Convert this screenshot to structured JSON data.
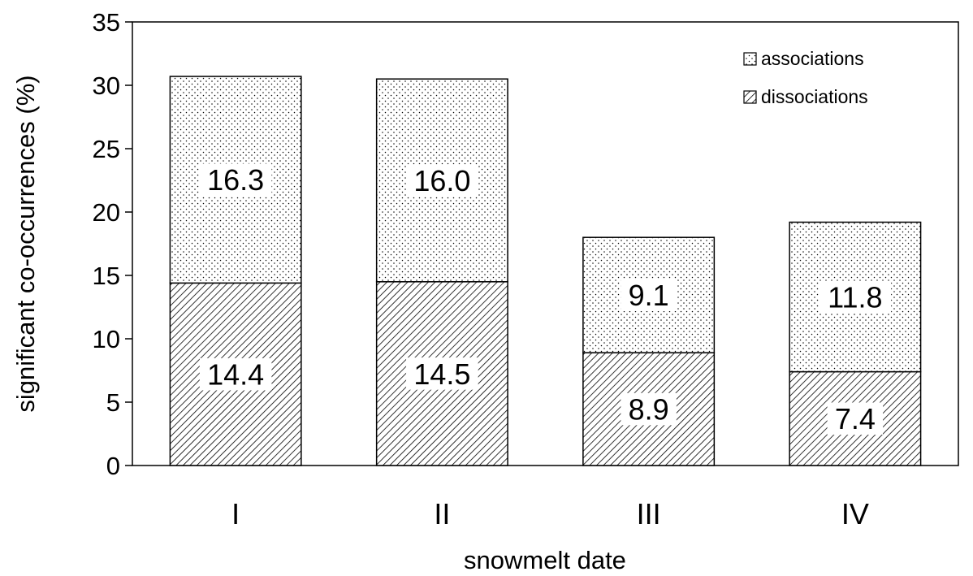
{
  "chart_data": {
    "type": "bar",
    "stacked": true,
    "categories": [
      "I",
      "II",
      "III",
      "IV"
    ],
    "series": [
      {
        "name": "dissociations",
        "values": [
          14.4,
          14.5,
          8.9,
          7.4
        ],
        "pattern": "hatch"
      },
      {
        "name": "associations",
        "values": [
          16.3,
          16.0,
          9.1,
          11.8
        ],
        "pattern": "dots"
      }
    ],
    "data_labels": {
      "dissociations": [
        "14.4",
        "14.5",
        "8.9",
        "7.4"
      ],
      "associations": [
        "16.3",
        "16.0",
        "9.1",
        "11.8"
      ]
    },
    "xlabel": "snowmelt date",
    "ylabel": "significant co-occurrences (%)",
    "ylim": [
      0,
      35
    ],
    "yticks": [
      0,
      5,
      10,
      15,
      20,
      25,
      30,
      35
    ],
    "ytick_labels": [
      "0",
      "5",
      "10",
      "15",
      "20",
      "25",
      "30",
      "35"
    ],
    "grid": false,
    "legend_position": "top-right",
    "legend": [
      "associations",
      "dissociations"
    ]
  }
}
